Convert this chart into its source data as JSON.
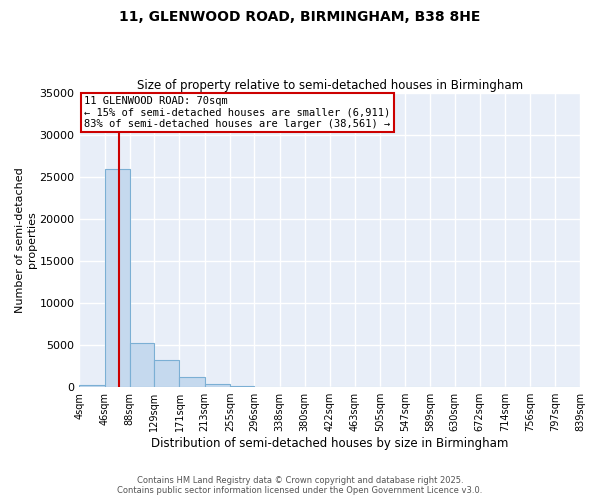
{
  "title_line1": "11, GLENWOOD ROAD, BIRMINGHAM, B38 8HE",
  "title_line2": "Size of property relative to semi-detached houses in Birmingham",
  "xlabel": "Distribution of semi-detached houses by size in Birmingham",
  "ylabel": "Number of semi-detached\nproperties",
  "bin_edges": [
    4,
    46,
    88,
    129,
    171,
    213,
    255,
    296,
    338,
    380,
    422,
    463,
    505,
    547,
    589,
    630,
    672,
    714,
    756,
    797,
    839
  ],
  "bin_values": [
    300,
    26000,
    5300,
    3200,
    1200,
    400,
    150,
    60,
    30,
    15,
    8,
    5,
    3,
    2,
    2,
    2,
    2,
    2,
    2,
    2
  ],
  "property_size": 70,
  "annotation_title": "11 GLENWOOD ROAD: 70sqm",
  "annotation_line2": "← 15% of semi-detached houses are smaller (6,911)",
  "annotation_line3": "83% of semi-detached houses are larger (38,561) →",
  "bar_facecolor": "#c5d9ee",
  "bar_edgecolor": "#7bafd4",
  "vline_color": "#cc0000",
  "annotation_box_edgecolor": "#cc0000",
  "annotation_box_facecolor": "#ffffff",
  "background_color": "#e8eef8",
  "grid_color": "#ffffff",
  "ylim": [
    0,
    35000
  ],
  "yticks": [
    0,
    5000,
    10000,
    15000,
    20000,
    25000,
    30000,
    35000
  ],
  "footer_line1": "Contains HM Land Registry data © Crown copyright and database right 2025.",
  "footer_line2": "Contains public sector information licensed under the Open Government Licence v3.0."
}
